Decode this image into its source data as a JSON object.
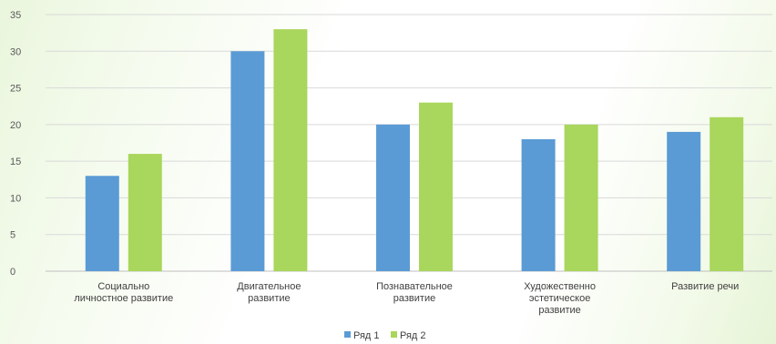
{
  "chart_data": {
    "type": "bar",
    "title": "",
    "xlabel": "",
    "ylabel": "",
    "ylim": [
      0,
      35
    ],
    "yticks": [
      0,
      5,
      10,
      15,
      20,
      25,
      30,
      35
    ],
    "grid": true,
    "legend_position": "bottom",
    "categories": [
      [
        "Социально",
        "личностное развитие"
      ],
      [
        "Двигательное",
        "развитие"
      ],
      [
        "Познавательное",
        "развитие"
      ],
      [
        "Художественно",
        "эстетическое",
        "развитие"
      ],
      [
        "Развитие речи"
      ]
    ],
    "series": [
      {
        "name": "Ряд 1",
        "color": "#5b9bd5",
        "values": [
          13,
          30,
          20,
          18,
          19
        ]
      },
      {
        "name": "Ряд 2",
        "color": "#a9d65c",
        "values": [
          16,
          33,
          23,
          20,
          21
        ]
      }
    ]
  }
}
